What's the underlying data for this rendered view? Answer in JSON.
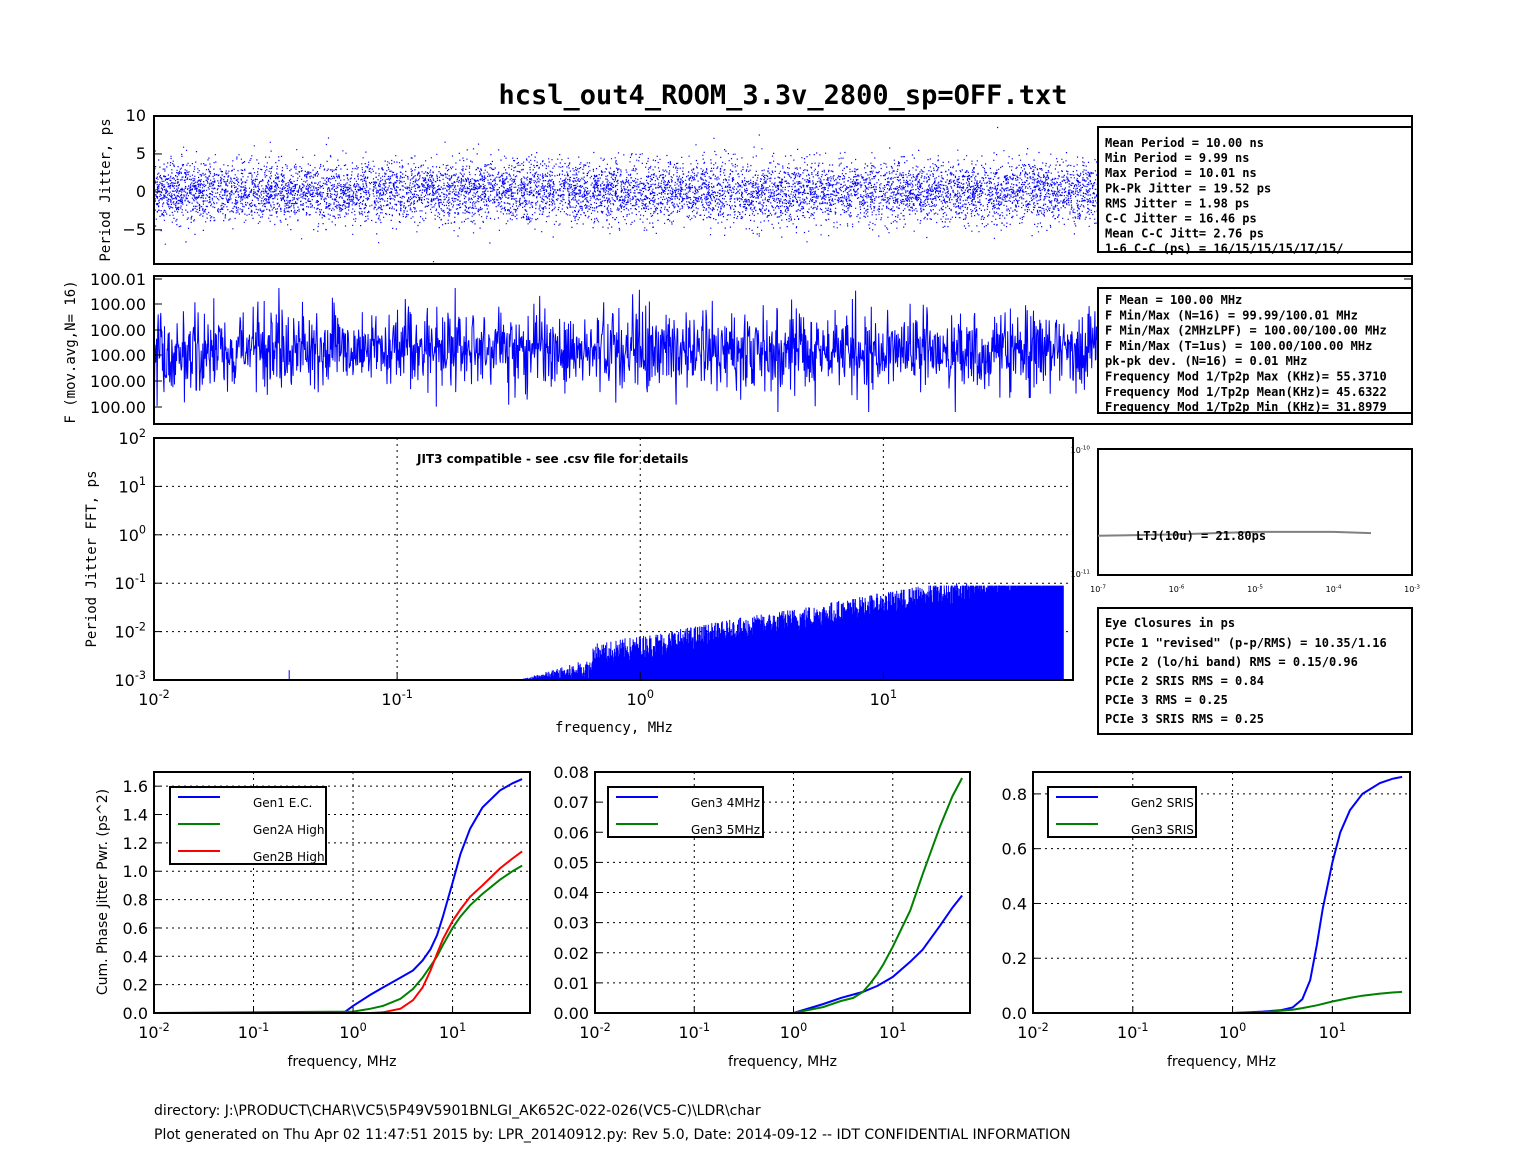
{
  "title": "hcsl_out4_ROOM_3.3v_2800_sp=OFF.txt",
  "footer": {
    "directory": "directory: J:\\PRODUCT\\CHAR\\VC5\\5P49V5901BNLGI_AK652C-022-026(VC5-C)\\LDR\\char",
    "generated": "Plot generated on Thu Apr 02 11:47:51 2015 by: LPR_20140912.py: Rev 5.0, Date: 2014-09-12 -- IDT CONFIDENTIAL INFORMATION"
  },
  "colors": {
    "blue": "#0000ff",
    "green": "#008000",
    "red": "#ff0000",
    "gray": "#808080"
  },
  "period_panel": {
    "ylabel": "Period Jitter, ps",
    "yticks": [
      "10",
      "5",
      "0",
      "−5"
    ],
    "ylim": [
      -9.5,
      10
    ],
    "stats": [
      "Mean Period  = 10.00 ns",
      "Min Period   = 9.99 ns",
      "Max Period   = 10.01 ns",
      "Pk-Pk Jitter = 19.52 ps",
      "RMS Jitter   = 1.98 ps",
      "C-C Jitter   = 16.46 ps",
      "Mean C-C Jitt= 2.76 ps",
      "1-6 C-C (ps) = 16/15/15/15/17/15/"
    ]
  },
  "freq_panel": {
    "ylabel": "F (mov.avg,N= 16)",
    "yticks": [
      "100.01",
      "100.00",
      "100.00",
      "100.00",
      "100.00",
      "100.00"
    ],
    "stats": [
      "F Mean               = 100.00 MHz",
      "F Min/Max (N=16)     = 99.99/100.01 MHz",
      "F Min/Max (2MHzLPF) = 100.00/100.00 MHz",
      "F Min/Max (T=1us)    = 100.00/100.00 MHz",
      "pk-pk dev. (N=16)    = 0.01 MHz",
      "Frequency Mod 1/Tp2p Max (KHz)= 55.3710",
      "Frequency Mod 1/Tp2p Mean(KHz)= 45.6322",
      "Frequency Mod 1/Tp2p Min (KHz)= 31.8979"
    ]
  },
  "fft_panel": {
    "ylabel": "Period Jitter FFT, ps",
    "xlabel": "frequency, MHz",
    "annotation": "JIT3 compatible - see .csv file for details",
    "xlim_log": [
      -2,
      1.78
    ],
    "ylim_log": [
      -3,
      2
    ],
    "xticks": [
      {
        "base": "10",
        "exp": "-2",
        "v": -2
      },
      {
        "base": "10",
        "exp": "-1",
        "v": -1
      },
      {
        "base": "10",
        "exp": "0",
        "v": 0
      },
      {
        "base": "10",
        "exp": "1",
        "v": 1
      }
    ],
    "yticks": [
      {
        "base": "10",
        "exp": "2",
        "v": 2
      },
      {
        "base": "10",
        "exp": "1",
        "v": 1
      },
      {
        "base": "10",
        "exp": "0",
        "v": 0
      },
      {
        "base": "10",
        "exp": "-1",
        "v": -1
      },
      {
        "base": "10",
        "exp": "-2",
        "v": -2
      },
      {
        "base": "10",
        "exp": "-3",
        "v": -3
      }
    ]
  },
  "ltj_panel": {
    "label": "LTJ(10u) = 21.80ps",
    "yticks": [
      {
        "base": "10",
        "exp": "-10"
      },
      {
        "base": "10",
        "exp": "-11"
      }
    ],
    "xticks": [
      {
        "base": "10",
        "exp": "-7"
      },
      {
        "base": "10",
        "exp": "-6"
      },
      {
        "base": "10",
        "exp": "-5"
      },
      {
        "base": "10",
        "exp": "-4"
      },
      {
        "base": "10",
        "exp": "-3"
      }
    ]
  },
  "eye_panel": {
    "title": "Eye Closures in ps",
    "rows": [
      "PCIe 1 \"revised\" (p-p/RMS)  = 10.35/1.16",
      "PCIe 2 (lo/hi band) RMS     = 0.15/0.96",
      "PCIe 2 SRIS  RMS            = 0.84",
      "PCIe 3 RMS                  = 0.25",
      "PCIe 3 SRIS  RMS            = 0.25"
    ]
  },
  "chart_data": [
    {
      "type": "scatter",
      "title": "hcsl_out4_ROOM_3.3v_2800_sp=OFF.txt",
      "ylabel": "Period Jitter, ps",
      "ylim": [
        -9.5,
        10
      ],
      "description_values": {
        "rms_ps": 1.98,
        "pk_pk_ps": 19.52
      }
    },
    {
      "type": "line",
      "ylabel": "F (mov.avg,N= 16)",
      "ylim_MHz": [
        99.995,
        100.01
      ]
    },
    {
      "type": "bar",
      "xlabel": "frequency, MHz",
      "ylabel": "Period Jitter FFT, ps",
      "xscale": "log",
      "yscale": "log",
      "xlim": [
        0.01,
        60
      ],
      "ylim": [
        0.001,
        100
      ],
      "spikes": [
        {
          "x": 0.036,
          "y": 0.0016
        },
        {
          "x": 20,
          "y": 0.1
        },
        {
          "x": 22,
          "y": 0.1
        },
        {
          "x": 30,
          "y": 0.09
        },
        {
          "x": 50,
          "y": 0.06
        }
      ]
    },
    {
      "type": "line",
      "xscale": "log",
      "x": [
        1e-07,
        1e-06,
        1e-05,
        0.0001,
        0.0003
      ],
      "y": [
        2.05e-11,
        2.1e-11,
        2.2e-11,
        2.2e-11,
        2.15e-11
      ]
    },
    {
      "type": "line",
      "xlabel": "frequency, MHz",
      "ylabel": "Cum. Phase Jitter Pwr. (ps^2)",
      "xscale": "log",
      "xlim": [
        0.01,
        60
      ],
      "ylim": [
        0,
        1.7
      ],
      "yticks": [
        "0.0",
        "0.2",
        "0.4",
        "0.6",
        "0.8",
        "1.0",
        "1.2",
        "1.4",
        "1.6"
      ],
      "series": [
        {
          "name": "Gen1 E.C.",
          "color": "#0000ff",
          "x": [
            0.01,
            0.8,
            1,
            1.5,
            2,
            3,
            4,
            5,
            6,
            7,
            8,
            10,
            12,
            15,
            20,
            30,
            40,
            50
          ],
          "y": [
            0,
            0,
            0.05,
            0.13,
            0.18,
            0.25,
            0.3,
            0.37,
            0.45,
            0.55,
            0.68,
            0.92,
            1.12,
            1.3,
            1.45,
            1.57,
            1.62,
            1.65
          ]
        },
        {
          "name": "Gen2A High",
          "color": "#008000",
          "x": [
            0.01,
            1,
            1.5,
            2,
            3,
            4,
            5,
            6,
            7,
            8,
            10,
            12,
            15,
            20,
            30,
            40,
            50
          ],
          "y": [
            0,
            0.01,
            0.03,
            0.05,
            0.1,
            0.17,
            0.25,
            0.33,
            0.4,
            0.48,
            0.6,
            0.68,
            0.76,
            0.84,
            0.94,
            1.0,
            1.04
          ]
        },
        {
          "name": "Gen2B High",
          "color": "#ff0000",
          "x": [
            0.01,
            1.5,
            2,
            3,
            4,
            5,
            6,
            7,
            8,
            10,
            12,
            15,
            20,
            30,
            40,
            50
          ],
          "y": [
            0,
            0,
            0.005,
            0.03,
            0.09,
            0.18,
            0.3,
            0.42,
            0.52,
            0.65,
            0.73,
            0.82,
            0.9,
            1.02,
            1.09,
            1.14
          ]
        }
      ]
    },
    {
      "type": "line",
      "xlabel": "frequency, MHz",
      "xscale": "log",
      "xlim": [
        0.01,
        60
      ],
      "ylim": [
        0,
        0.08
      ],
      "yticks": [
        "0.00",
        "0.01",
        "0.02",
        "0.03",
        "0.04",
        "0.05",
        "0.06",
        "0.07",
        "0.08"
      ],
      "series": [
        {
          "name": "Gen3 4MHz",
          "color": "#0000ff",
          "x": [
            0.01,
            1,
            2,
            3,
            5,
            7,
            10,
            15,
            20,
            30,
            40,
            50
          ],
          "y": [
            0,
            0,
            0.003,
            0.005,
            0.007,
            0.009,
            0.012,
            0.017,
            0.021,
            0.029,
            0.035,
            0.039
          ]
        },
        {
          "name": "Gen3 5MHz",
          "color": "#008000",
          "x": [
            0.01,
            1,
            2,
            3,
            4,
            5,
            6,
            7,
            8,
            10,
            15,
            20,
            30,
            40,
            50
          ],
          "y": [
            0,
            0,
            0.002,
            0.004,
            0.005,
            0.007,
            0.01,
            0.013,
            0.016,
            0.022,
            0.034,
            0.046,
            0.062,
            0.072,
            0.078
          ]
        }
      ]
    },
    {
      "type": "line",
      "xlabel": "frequency, MHz",
      "xscale": "log",
      "xlim": [
        0.01,
        60
      ],
      "ylim": [
        0,
        0.88
      ],
      "yticks": [
        "0.0",
        "0.2",
        "0.4",
        "0.6",
        "0.8"
      ],
      "series": [
        {
          "name": "Gen2 SRIS",
          "color": "#0000ff",
          "x": [
            0.01,
            1,
            2,
            3,
            4,
            5,
            6,
            7,
            8,
            10,
            12,
            15,
            20,
            30,
            40,
            50
          ],
          "y": [
            0,
            0,
            0.005,
            0.01,
            0.02,
            0.05,
            0.12,
            0.25,
            0.38,
            0.55,
            0.66,
            0.74,
            0.8,
            0.84,
            0.855,
            0.862
          ]
        },
        {
          "name": "Gen3 SRIS",
          "color": "#008000",
          "x": [
            0.01,
            1,
            2,
            3,
            4,
            5,
            7,
            10,
            15,
            20,
            30,
            40,
            50
          ],
          "y": [
            0,
            0,
            0.003,
            0.008,
            0.012,
            0.018,
            0.028,
            0.042,
            0.055,
            0.063,
            0.071,
            0.075,
            0.077
          ]
        }
      ]
    }
  ]
}
